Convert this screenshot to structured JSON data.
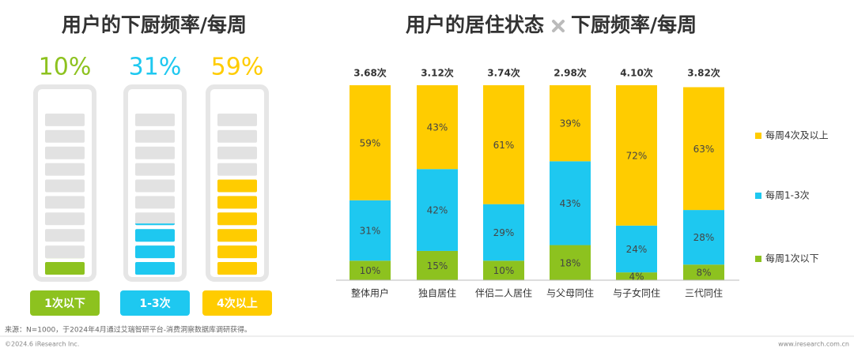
{
  "chart_data": [
    {
      "type": "battery",
      "title": "用户的下厨频率/每周",
      "categories": [
        "1次以下",
        "1-3次",
        "4次以上"
      ],
      "values": [
        10,
        31,
        59
      ],
      "value_labels": [
        "10%",
        "31%",
        "59%"
      ],
      "colors": [
        "#8dc21f",
        "#1ec8f0",
        "#ffcc00"
      ],
      "ylim": [
        0,
        100
      ]
    },
    {
      "type": "stacked-bar",
      "title": "用户的居住状态",
      "title_suffix": "下厨频率/每周",
      "categories": [
        "整体用户",
        "独自居住",
        "伴侣二人居住",
        "与父母同住",
        "与子女同住",
        "三代同住"
      ],
      "annotations": [
        "3.68次",
        "3.12次",
        "3.74次",
        "2.98次",
        "4.10次",
        "3.82次"
      ],
      "ylim": [
        0,
        100
      ],
      "series": [
        {
          "name": "每周1次以下",
          "color": "#8dc21f",
          "values": [
            10,
            15,
            10,
            18,
            4,
            8
          ],
          "value_labels": [
            "10%",
            "15%",
            "10%",
            "18%",
            "4%",
            "8%"
          ]
        },
        {
          "name": "每周1-3次",
          "color": "#1ec8f0",
          "values": [
            31,
            42,
            29,
            43,
            24,
            28
          ],
          "value_labels": [
            "31%",
            "42%",
            "29%",
            "43%",
            "24%",
            "28%"
          ]
        },
        {
          "name": "每周4次及以上",
          "color": "#ffcc00",
          "values": [
            59,
            43,
            61,
            39,
            72,
            63
          ],
          "value_labels": [
            "59%",
            "43%",
            "61%",
            "39%",
            "72%",
            "63%"
          ]
        }
      ]
    }
  ],
  "footer": {
    "source": "来源：N=1000，于2024年4月通过艾瑞智研平台-消费洞察数据库调研获得。",
    "copyright": "©2024.6 iResearch Inc.",
    "website": "www.iresearch.com.cn"
  }
}
